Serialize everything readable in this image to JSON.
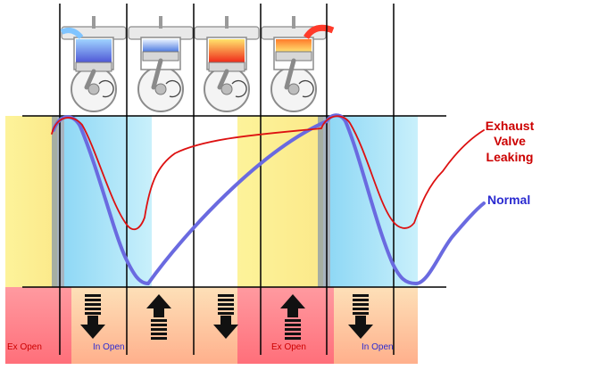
{
  "labels": {
    "exhaust_leaking": [
      "Exhaust",
      "Valve",
      "Leaking"
    ],
    "normal": "Normal",
    "ex_open": "Ex Open",
    "in_open": "In Open"
  },
  "colors": {
    "exhaust_leaking_curve": "#dd1111",
    "normal_curve": "#6a6ae0",
    "label_red": "#cc0000",
    "label_blue": "#2a2ad0",
    "exhaust_zone": "#ff7a84",
    "intake_zone": "#7ecbf0",
    "yellow_zone": "#fdf39a",
    "line": "#000000"
  },
  "strokes": [
    {
      "name": "intake-stroke",
      "piston": "down",
      "arrow": "down",
      "heat": "intake"
    },
    {
      "name": "compression-stroke",
      "piston": "up",
      "arrow": "up",
      "heat": "compress"
    },
    {
      "name": "power-stroke",
      "piston": "down",
      "arrow": "down",
      "heat": "combust"
    },
    {
      "name": "exhaust-stroke",
      "piston": "up",
      "arrow": "up",
      "heat": "exhaust"
    }
  ],
  "icons": {
    "engine_cylinder": "engine-cylinder-icon",
    "arrow_down": "arrow-down-icon",
    "arrow_up": "arrow-up-icon"
  }
}
